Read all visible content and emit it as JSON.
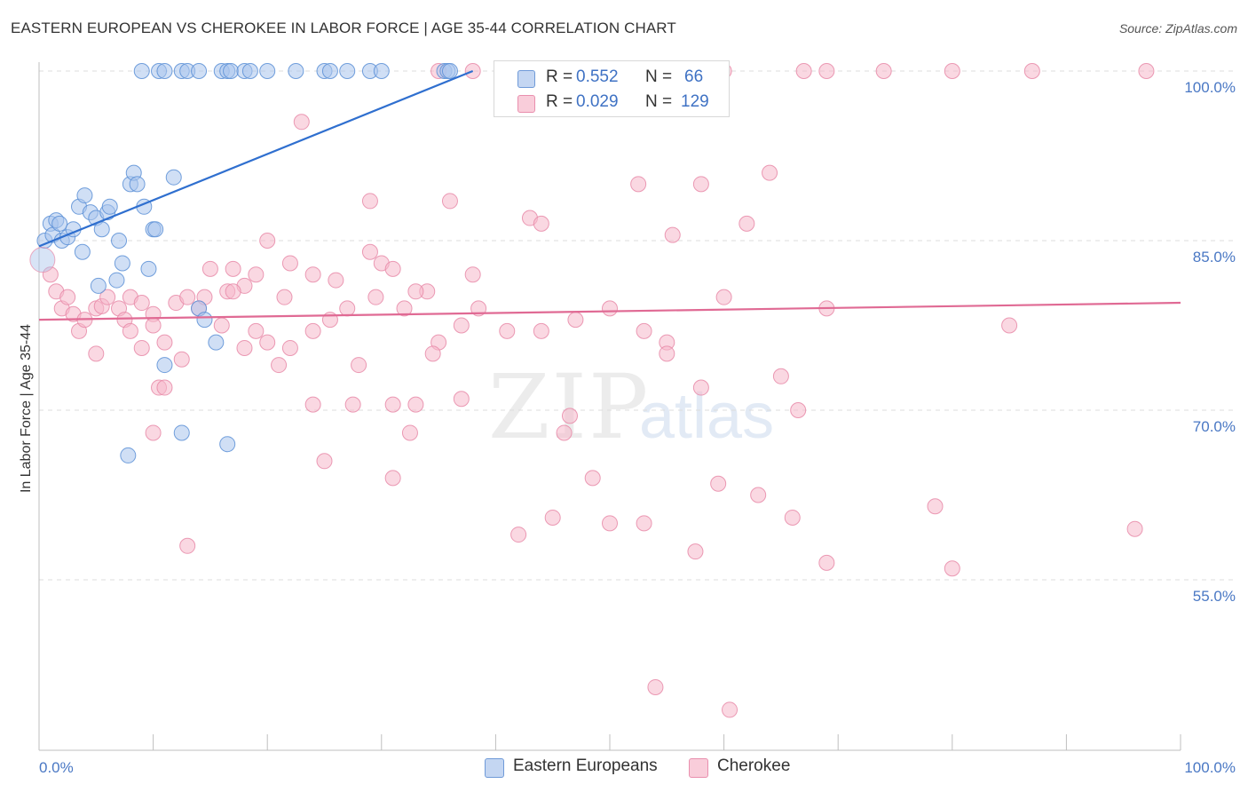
{
  "title": "EASTERN EUROPEAN VS CHEROKEE IN LABOR FORCE | AGE 35-44 CORRELATION CHART",
  "source": "Source: ZipAtlas.com",
  "watermark": {
    "zip": "ZIP",
    "atlas": "atlas"
  },
  "legend": {
    "rows": [
      {
        "r_label": "R =",
        "r_value": "0.552",
        "n_label": "N =",
        "n_value": "66",
        "color": "#a9c4ec"
      },
      {
        "r_label": "R =",
        "r_value": "0.029",
        "n_label": "N =",
        "n_value": "129",
        "color": "#f5b8cb"
      }
    ]
  },
  "bottom_legend": [
    {
      "label": "Eastern Europeans",
      "color": "#a9c4ec"
    },
    {
      "label": "Cherokee",
      "color": "#f5b8cb"
    }
  ],
  "chart_data": {
    "type": "scatter",
    "title": "EASTERN EUROPEAN VS CHEROKEE IN LABOR FORCE | AGE 35-44 CORRELATION CHART",
    "xlabel": "",
    "ylabel": "In Labor Force | Age 35-44",
    "xlim": [
      0,
      100
    ],
    "ylim": [
      40,
      101
    ],
    "x_tick_labels": [
      "0.0%",
      "100.0%"
    ],
    "y_ticks": [
      55,
      70,
      85,
      100
    ],
    "y_tick_labels": [
      "55.0%",
      "70.0%",
      "85.0%",
      "100.0%"
    ],
    "grid": true,
    "colors": {
      "eastern": "#a9c4ec",
      "eastern_edge": "#5b8fd6",
      "eastern_line": "#2f6fcf",
      "cherokee": "#f5b8cb",
      "cherokee_edge": "#e889a8",
      "cherokee_line": "#e06a94"
    },
    "series": [
      {
        "name": "Eastern Europeans",
        "trend": {
          "x": [
            0,
            38
          ],
          "y": [
            84.5,
            100
          ]
        },
        "points": [
          [
            9,
            100
          ],
          [
            10.5,
            100
          ],
          [
            11,
            100
          ],
          [
            12.5,
            100
          ],
          [
            13,
            100
          ],
          [
            14,
            100
          ],
          [
            16,
            100
          ],
          [
            16.5,
            100
          ],
          [
            16.8,
            100
          ],
          [
            18,
            100
          ],
          [
            18.5,
            100
          ],
          [
            20,
            100
          ],
          [
            22.5,
            100
          ],
          [
            25,
            100
          ],
          [
            25.5,
            100
          ],
          [
            27,
            100
          ],
          [
            29,
            100
          ],
          [
            30,
            100
          ],
          [
            35.5,
            100
          ],
          [
            35.8,
            100
          ],
          [
            36,
            100
          ],
          [
            0.5,
            85
          ],
          [
            1,
            86.5
          ],
          [
            1.2,
            85.5
          ],
          [
            1.5,
            86.8
          ],
          [
            1.8,
            86.5
          ],
          [
            2,
            85
          ],
          [
            2.5,
            85.3
          ],
          [
            3,
            86
          ],
          [
            3.5,
            88
          ],
          [
            4,
            89
          ],
          [
            4.5,
            87.5
          ],
          [
            5,
            87
          ],
          [
            5.5,
            86
          ],
          [
            6,
            87.5
          ],
          [
            6.2,
            88
          ],
          [
            7,
            85
          ],
          [
            7.3,
            83
          ],
          [
            6.8,
            81.5
          ],
          [
            5.2,
            81
          ],
          [
            3.8,
            84
          ],
          [
            8,
            90
          ],
          [
            8.3,
            91
          ],
          [
            8.6,
            90
          ],
          [
            9.2,
            88
          ],
          [
            10,
            86
          ],
          [
            10.2,
            86
          ],
          [
            9.6,
            82.5
          ],
          [
            11.8,
            90.6
          ],
          [
            14,
            79
          ],
          [
            14.5,
            78
          ],
          [
            15.5,
            76
          ],
          [
            11,
            74
          ],
          [
            12.5,
            68
          ],
          [
            16.5,
            67
          ],
          [
            7.8,
            66
          ]
        ]
      },
      {
        "name": "Cherokee",
        "trend": {
          "x": [
            0,
            100
          ],
          "y": [
            78,
            79.5
          ]
        },
        "points": [
          [
            35,
            100
          ],
          [
            38,
            100
          ],
          [
            52.5,
            100
          ],
          [
            60,
            100
          ],
          [
            67,
            100
          ],
          [
            69,
            100
          ],
          [
            74,
            100
          ],
          [
            80,
            100
          ],
          [
            87,
            100
          ],
          [
            97,
            100
          ],
          [
            23,
            95.5
          ],
          [
            52.5,
            90
          ],
          [
            58,
            90
          ],
          [
            64,
            91
          ],
          [
            29,
            88.5
          ],
          [
            36,
            88.5
          ],
          [
            43,
            87
          ],
          [
            44,
            86.5
          ],
          [
            55.5,
            85.5
          ],
          [
            62,
            86.5
          ],
          [
            20,
            85
          ],
          [
            22,
            83
          ],
          [
            24,
            82
          ],
          [
            26,
            81.5
          ],
          [
            29,
            84
          ],
          [
            30,
            83
          ],
          [
            31,
            82.5
          ],
          [
            34,
            80.5
          ],
          [
            38,
            82
          ],
          [
            17,
            82.5
          ],
          [
            18,
            81
          ],
          [
            19,
            82
          ],
          [
            15,
            82.5
          ],
          [
            16.5,
            80.5
          ],
          [
            1,
            82
          ],
          [
            1.5,
            80.5
          ],
          [
            2,
            79
          ],
          [
            2.5,
            80
          ],
          [
            3,
            78.5
          ],
          [
            3.5,
            77
          ],
          [
            4,
            78
          ],
          [
            5,
            79
          ],
          [
            5.5,
            79.2
          ],
          [
            6,
            80
          ],
          [
            7,
            79
          ],
          [
            7.5,
            78
          ],
          [
            8,
            80
          ],
          [
            9,
            79.5
          ],
          [
            10,
            78.5
          ],
          [
            11,
            76
          ],
          [
            12,
            79.5
          ],
          [
            13,
            80
          ],
          [
            14,
            79
          ],
          [
            14.5,
            80
          ],
          [
            16,
            77.5
          ],
          [
            17,
            80.5
          ],
          [
            19,
            77
          ],
          [
            20,
            76
          ],
          [
            21.5,
            80
          ],
          [
            22,
            75.5
          ],
          [
            24,
            77
          ],
          [
            25.5,
            78
          ],
          [
            27,
            79
          ],
          [
            29.5,
            80
          ],
          [
            32,
            79
          ],
          [
            33,
            80.5
          ],
          [
            35,
            76
          ],
          [
            37,
            77.5
          ],
          [
            38.5,
            79
          ],
          [
            41,
            77
          ],
          [
            44,
            77
          ],
          [
            47,
            78
          ],
          [
            50,
            79
          ],
          [
            53,
            77
          ],
          [
            55,
            76
          ],
          [
            60,
            80
          ],
          [
            69,
            79
          ],
          [
            85,
            77.5
          ],
          [
            5,
            75
          ],
          [
            8,
            77
          ],
          [
            10,
            77.5
          ],
          [
            9,
            75.5
          ],
          [
            10.5,
            72
          ],
          [
            11,
            72
          ],
          [
            12.5,
            74.5
          ],
          [
            18,
            75.5
          ],
          [
            21,
            74
          ],
          [
            28,
            74
          ],
          [
            34.5,
            75
          ],
          [
            55,
            75
          ],
          [
            58,
            72
          ],
          [
            65,
            73
          ],
          [
            37,
            71
          ],
          [
            31,
            70.5
          ],
          [
            24,
            70.5
          ],
          [
            27.5,
            70.5
          ],
          [
            33,
            70.5
          ],
          [
            46.5,
            69.5
          ],
          [
            66.5,
            70
          ],
          [
            10,
            68
          ],
          [
            32.5,
            68
          ],
          [
            46,
            68
          ],
          [
            25,
            65.5
          ],
          [
            31,
            64
          ],
          [
            48.5,
            64
          ],
          [
            59.5,
            63.5
          ],
          [
            63,
            62.5
          ],
          [
            78.5,
            61.5
          ],
          [
            45,
            60.5
          ],
          [
            50,
            60
          ],
          [
            53,
            60
          ],
          [
            66,
            60.5
          ],
          [
            96,
            59.5
          ],
          [
            13,
            58
          ],
          [
            42,
            59
          ],
          [
            57.5,
            57.5
          ],
          [
            69,
            56.5
          ],
          [
            80,
            56
          ],
          [
            54,
            45.5
          ],
          [
            60.5,
            43.5
          ]
        ]
      }
    ]
  }
}
